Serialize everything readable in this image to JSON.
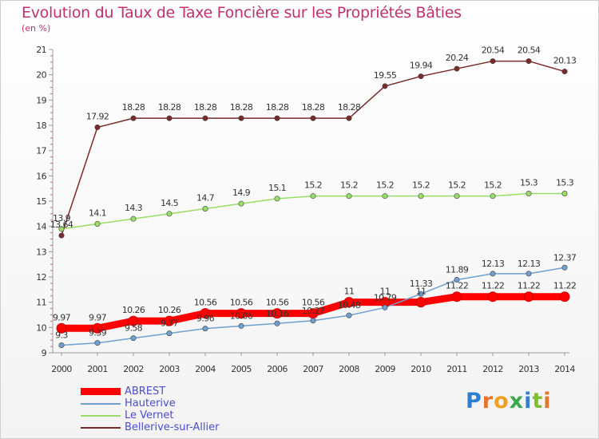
{
  "page": {
    "title": "Evolution du Taux de Taxe Foncière sur les Propriétés Bâties",
    "unit": "(en %)"
  },
  "logo": {
    "letters": [
      "P",
      "r",
      "o",
      "x",
      "i",
      "t",
      "i"
    ],
    "colors": [
      "#2f7fd0",
      "#e8732a",
      "#f0a020",
      "#3aa84a",
      "#2f7fd0",
      "#7fbf2e",
      "#e8732a"
    ]
  },
  "chart_data": {
    "type": "line",
    "title": "Evolution du Taux de Taxe Foncière sur les Propriétés Bâties",
    "ylabel": "(en %)",
    "xlabel": "",
    "x": [
      2000,
      2001,
      2002,
      2003,
      2004,
      2005,
      2006,
      2007,
      2008,
      2009,
      2010,
      2011,
      2012,
      2013,
      2014
    ],
    "ylim": [
      9,
      21
    ],
    "yticks": [
      9,
      10,
      11,
      12,
      13,
      14,
      15,
      16,
      17,
      18,
      19,
      20,
      21
    ],
    "grid": false,
    "legend_position": "bottom-left",
    "series": [
      {
        "name": "ABREST",
        "color": "#ff0000",
        "values": [
          9.97,
          9.97,
          10.26,
          10.26,
          10.56,
          10.56,
          10.56,
          10.56,
          11,
          11,
          11,
          11.22,
          11.22,
          11.22,
          11.22
        ],
        "labels": [
          "9.97",
          "9.97",
          "10.26",
          "10.26",
          "10.56",
          "10.56",
          "10.56",
          "10.56",
          "11",
          "11",
          "11",
          "11.22",
          "11.22",
          "11.22",
          "11.22"
        ]
      },
      {
        "name": "Hauterive",
        "color": "#6fa0d0",
        "values": [
          9.3,
          9.39,
          9.58,
          9.77,
          9.96,
          10.06,
          10.16,
          10.27,
          10.48,
          10.79,
          11.33,
          11.89,
          12.13,
          12.13,
          12.37
        ],
        "labels": [
          "9.3",
          "9.39",
          "9.58",
          "9.77",
          "9.96",
          "10.06",
          "10.16",
          "10.27",
          "10.48",
          "10.79",
          "11.33",
          "11.89",
          "12.13",
          "12.13",
          "12.37"
        ]
      },
      {
        "name": "Le Vernet",
        "color": "#99dd66",
        "values": [
          13.9,
          14.1,
          14.3,
          14.5,
          14.7,
          14.9,
          15.1,
          15.2,
          15.2,
          15.2,
          15.2,
          15.2,
          15.2,
          15.3,
          15.3
        ],
        "labels": [
          "13.9",
          "14.1",
          "14.3",
          "14.5",
          "14.7",
          "14.9",
          "15.1",
          "15.2",
          "15.2",
          "15.2",
          "15.2",
          "15.2",
          "15.2",
          "15.3",
          "15.3"
        ]
      },
      {
        "name": "Bellerive-sur-Allier",
        "color": "#7a2a2a",
        "values": [
          13.64,
          17.92,
          18.28,
          18.28,
          18.28,
          18.28,
          18.28,
          18.28,
          18.28,
          19.55,
          19.94,
          20.24,
          20.54,
          20.54,
          20.13
        ],
        "labels": [
          "13.64",
          "17.92",
          "18.28",
          "18.28",
          "18.28",
          "18.28",
          "18.28",
          "18.28",
          "18.28",
          "19.55",
          "19.94",
          "20.24",
          "20.54",
          "20.54",
          "20.13"
        ]
      }
    ]
  }
}
